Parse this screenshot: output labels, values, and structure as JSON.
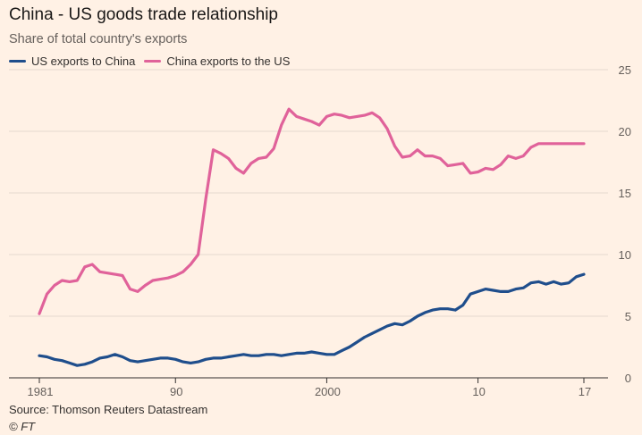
{
  "chart_data": {
    "type": "line",
    "title": "China - US goods trade relationship",
    "subtitle": "Share of total country's exports",
    "x_tick_labels": [
      "1981",
      "90",
      "2000",
      "10",
      "17"
    ],
    "x_tick_values": [
      1981,
      1990,
      2000,
      2010,
      2017
    ],
    "xlim": [
      1980.8,
      2017.1
    ],
    "y_tick_labels": [
      "0",
      "5",
      "10",
      "15",
      "20",
      "25"
    ],
    "y_tick_values": [
      0,
      5,
      10,
      15,
      20,
      25
    ],
    "ylim": [
      0,
      25
    ],
    "grid": "horizontal",
    "y_axis_position": "right",
    "legend_position": "top-left",
    "series": [
      {
        "name": "US exports to China",
        "color": "#1f4e8c",
        "x": [
          1981,
          1981.5,
          1982,
          1982.5,
          1983,
          1983.5,
          1984,
          1984.5,
          1985,
          1985.5,
          1986,
          1986.5,
          1987,
          1987.5,
          1988,
          1988.5,
          1989,
          1989.5,
          1990,
          1990.5,
          1991,
          1991.5,
          1992,
          1992.5,
          1993,
          1993.5,
          1994,
          1994.5,
          1995,
          1995.5,
          1996,
          1996.5,
          1997,
          1997.5,
          1998,
          1998.5,
          1999,
          1999.5,
          2000,
          2000.5,
          2001,
          2001.5,
          2002,
          2002.5,
          2003,
          2003.5,
          2004,
          2004.5,
          2005,
          2005.5,
          2006,
          2006.5,
          2007,
          2007.5,
          2008,
          2008.5,
          2009,
          2009.5,
          2010,
          2010.5,
          2011,
          2011.5,
          2012,
          2012.5,
          2013,
          2013.5,
          2014,
          2014.5,
          2015,
          2015.5,
          2016,
          2016.5,
          2017
        ],
        "values": [
          1.8,
          1.7,
          1.5,
          1.4,
          1.2,
          1.0,
          1.1,
          1.3,
          1.6,
          1.7,
          1.9,
          1.7,
          1.4,
          1.3,
          1.4,
          1.5,
          1.6,
          1.6,
          1.5,
          1.3,
          1.2,
          1.3,
          1.5,
          1.6,
          1.6,
          1.7,
          1.8,
          1.9,
          1.8,
          1.8,
          1.9,
          1.9,
          1.8,
          1.9,
          2.0,
          2.0,
          2.1,
          2.0,
          1.9,
          1.9,
          2.2,
          2.5,
          2.9,
          3.3,
          3.6,
          3.9,
          4.2,
          4.4,
          4.3,
          4.6,
          5.0,
          5.3,
          5.5,
          5.6,
          5.6,
          5.5,
          5.9,
          6.8,
          7.0,
          7.2,
          7.1,
          7.0,
          7.0,
          7.2,
          7.3,
          7.7,
          7.8,
          7.6,
          7.8,
          7.6,
          7.7,
          8.2,
          8.4
        ]
      },
      {
        "name": "China exports to the US",
        "color": "#e0629a",
        "x": [
          1981,
          1981.5,
          1982,
          1982.5,
          1983,
          1983.5,
          1984,
          1984.5,
          1985,
          1985.5,
          1986,
          1986.5,
          1987,
          1987.5,
          1988,
          1988.5,
          1989,
          1989.5,
          1990,
          1990.5,
          1991,
          1991.5,
          1992,
          1992.5,
          1993,
          1993.5,
          1994,
          1994.5,
          1995,
          1995.5,
          1996,
          1996.5,
          1997,
          1997.5,
          1998,
          1998.5,
          1999,
          1999.5,
          2000,
          2000.5,
          2001,
          2001.5,
          2002,
          2002.5,
          2003,
          2003.5,
          2004,
          2004.5,
          2005,
          2005.5,
          2006,
          2006.5,
          2007,
          2007.5,
          2008,
          2008.5,
          2009,
          2009.5,
          2010,
          2010.5,
          2011,
          2011.5,
          2012,
          2012.5,
          2013,
          2013.5,
          2014,
          2014.5,
          2015,
          2015.5,
          2016,
          2016.5,
          2017
        ],
        "values": [
          5.2,
          6.8,
          7.5,
          7.9,
          7.8,
          7.9,
          9.0,
          9.2,
          8.6,
          8.5,
          8.4,
          8.3,
          7.2,
          7.0,
          7.5,
          7.9,
          8.0,
          8.1,
          8.3,
          8.6,
          9.2,
          10.0,
          14.5,
          18.5,
          18.2,
          17.8,
          17.0,
          16.6,
          17.4,
          17.8,
          17.9,
          18.6,
          20.5,
          21.8,
          21.2,
          21.0,
          20.8,
          20.5,
          21.2,
          21.4,
          21.3,
          21.1,
          21.2,
          21.3,
          21.5,
          21.1,
          20.2,
          18.8,
          17.9,
          18.0,
          18.5,
          18.0,
          18.0,
          17.8,
          17.2,
          17.3,
          17.4,
          16.6,
          16.7,
          17.0,
          16.9,
          17.3,
          18.0,
          17.8,
          18.0,
          18.7,
          19.0,
          19.0,
          19.0,
          19.0,
          19.0,
          19.0,
          19.0
        ]
      }
    ]
  },
  "source": "Source: Thomson Reuters Datastream",
  "credit": "© FT"
}
